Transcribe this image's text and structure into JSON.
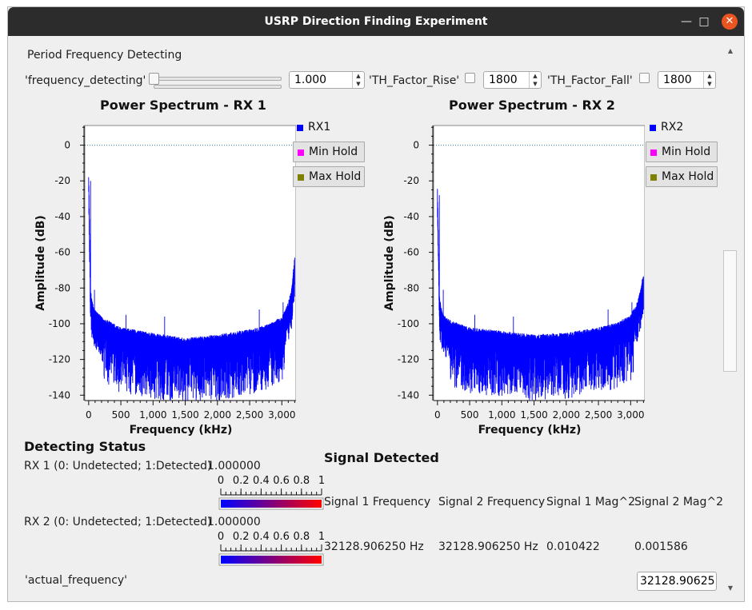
{
  "window": {
    "title": "USRP Direction Finding Experiment"
  },
  "controls": {
    "group_label": "Period Frequency Detecting",
    "frequency_detecting_label": "'frequency_detecting'",
    "frequency_detecting_value": "1.000",
    "frequency_detecting_slider_fraction": 0.0,
    "th_rise_label": "'TH_Factor_Rise'",
    "th_rise_value": "1800",
    "th_fall_label": "'TH_Factor_Fall'",
    "th_fall_value": "1800"
  },
  "plots": {
    "rx1": {
      "title": "Power Spectrum - RX 1",
      "ylabel": "Amplitude (dB)",
      "xlabel": "Frequency (kHz)",
      "legend": [
        "RX1",
        "Min Hold",
        "Max Hold"
      ]
    },
    "rx2": {
      "title": "Power Spectrum - RX 2",
      "ylabel": "Amplitude (dB)",
      "xlabel": "Frequency (kHz)",
      "legend": [
        "RX2",
        "Min Hold",
        "Max Hold"
      ]
    },
    "yticks": [
      "0",
      "-20",
      "-40",
      "-60",
      "-80",
      "-100",
      "-120",
      "-140"
    ],
    "xticks": [
      "0",
      "500",
      "1,000",
      "1,500",
      "2,000",
      "2,500",
      "3,000"
    ],
    "colors": {
      "trace": "#0000ff",
      "min_hold": "#ff00ff",
      "max_hold": "#808000"
    }
  },
  "chart_data": [
    {
      "type": "line",
      "title": "Power Spectrum - RX 1",
      "xlabel": "Frequency (kHz)",
      "ylabel": "Amplitude (dB)",
      "xlim": [
        -60,
        3220
      ],
      "ylim": [
        -143,
        11
      ],
      "series": [
        {
          "name": "RX1",
          "x": [
            0,
            30,
            60,
            100,
            150,
            200,
            500,
            1000,
            1500,
            2000,
            2500,
            2800,
            3000,
            3100,
            3150,
            3200
          ],
          "values": [
            -20,
            -85,
            -93,
            -97,
            -99,
            -101,
            -107,
            -110,
            -113,
            -111,
            -108,
            -105,
            -101,
            -93,
            -85,
            -67
          ]
        }
      ]
    },
    {
      "type": "line",
      "title": "Power Spectrum - RX 2",
      "xlabel": "Frequency (kHz)",
      "ylabel": "Amplitude (dB)",
      "xlim": [
        -60,
        3220
      ],
      "ylim": [
        -143,
        11
      ],
      "series": [
        {
          "name": "RX2",
          "x": [
            0,
            30,
            60,
            100,
            150,
            200,
            500,
            1000,
            1500,
            2000,
            2500,
            2800,
            3000,
            3100,
            3150,
            3200
          ],
          "values": [
            -28,
            -89,
            -96,
            -100,
            -102,
            -103,
            -107,
            -109,
            -111,
            -110,
            -107,
            -104,
            -100,
            -93,
            -86,
            -76
          ]
        }
      ]
    }
  ],
  "status": {
    "heading": "Detecting Status",
    "rx1_label": "RX 1 (0: Undetected; 1:Detected)",
    "rx1_value": "1.000000",
    "rx1_level": 1.0,
    "rx2_label": "RX 2 (0: Undetected; 1:Detected)",
    "rx2_value": "1.000000",
    "rx2_level": 1.0,
    "scale_ticks": [
      "0",
      "0.2",
      "0.4",
      "0.6",
      "0.8",
      "1"
    ]
  },
  "signal": {
    "heading": "Signal Detected",
    "headers": [
      "Signal 1 Frequency",
      "Signal 2 Frequency",
      "Signal 1 Mag^2",
      "Signal 2 Mag^2"
    ],
    "values": [
      "32128.906250 Hz",
      "32128.906250 Hz",
      "0.010422",
      "0.001586"
    ]
  },
  "actual": {
    "label": "'actual_frequency'",
    "value": "32128.90625"
  }
}
